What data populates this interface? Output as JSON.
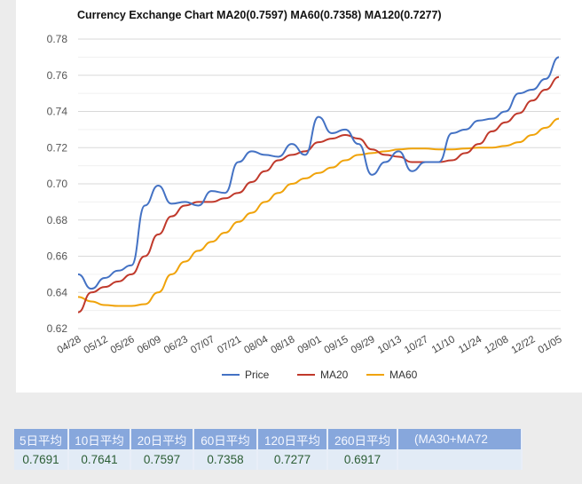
{
  "chart_data": {
    "type": "line",
    "title": "Currency Exchange Chart MA20(0.7597) MA60(0.7358) MA120(0.7277)",
    "xlabel": "",
    "ylabel": "",
    "ylim": [
      0.62,
      0.78
    ],
    "yticks": [
      "0.62",
      "0.64",
      "0.66",
      "0.68",
      "0.70",
      "0.72",
      "0.74",
      "0.76",
      "0.78"
    ],
    "xticks": [
      "04/28",
      "05/12",
      "05/26",
      "06/09",
      "06/23",
      "07/07",
      "07/21",
      "08/04",
      "08/18",
      "09/01",
      "09/15",
      "09/29",
      "10/13",
      "10/27",
      "11/10",
      "11/24",
      "12/08",
      "12/22",
      "01/05"
    ],
    "grid": true,
    "legend_position": "bottom",
    "series": [
      {
        "name": "Price",
        "color": "#4472c4",
        "values": [
          0.65,
          0.642,
          0.648,
          0.652,
          0.655,
          0.688,
          0.699,
          0.689,
          0.69,
          0.688,
          0.696,
          0.695,
          0.712,
          0.718,
          0.716,
          0.715,
          0.722,
          0.716,
          0.737,
          0.728,
          0.73,
          0.722,
          0.705,
          0.712,
          0.718,
          0.707,
          0.712,
          0.712,
          0.728,
          0.73,
          0.735,
          0.736,
          0.74,
          0.75,
          0.752,
          0.758,
          0.77
        ]
      },
      {
        "name": "MA20",
        "color": "#c0392b",
        "values": [
          0.629,
          0.64,
          0.643,
          0.646,
          0.65,
          0.66,
          0.672,
          0.682,
          0.688,
          0.69,
          0.69,
          0.692,
          0.695,
          0.701,
          0.707,
          0.713,
          0.716,
          0.718,
          0.723,
          0.725,
          0.727,
          0.725,
          0.719,
          0.716,
          0.715,
          0.712,
          0.712,
          0.712,
          0.713,
          0.717,
          0.722,
          0.729,
          0.734,
          0.739,
          0.746,
          0.752,
          0.759
        ]
      },
      {
        "name": "MA60",
        "color": "#f0a30a",
        "values": [
          0.6375,
          0.635,
          0.633,
          0.6325,
          0.6325,
          0.6335,
          0.64,
          0.65,
          0.657,
          0.663,
          0.668,
          0.673,
          0.679,
          0.684,
          0.69,
          0.695,
          0.7,
          0.703,
          0.706,
          0.709,
          0.713,
          0.716,
          0.717,
          0.718,
          0.719,
          0.7195,
          0.7195,
          0.719,
          0.719,
          0.7195,
          0.72,
          0.72,
          0.721,
          0.723,
          0.727,
          0.731,
          0.736
        ]
      }
    ]
  },
  "table": {
    "headers": [
      "5日平均",
      "10日平均",
      "20日平均",
      "60日平均",
      "120日平均",
      "260日平均",
      "(MA30+MA72"
    ],
    "values": [
      "0.7691",
      "0.7641",
      "0.7597",
      "0.7358",
      "0.7277",
      "0.6917",
      ""
    ]
  }
}
